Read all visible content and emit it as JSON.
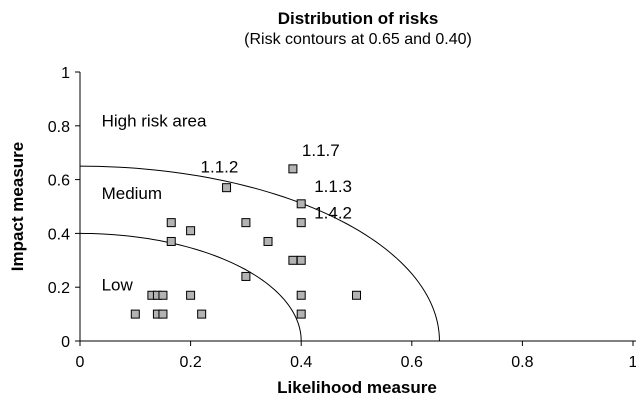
{
  "chart_data": {
    "type": "scatter",
    "title": "Distribution of risks",
    "subtitle": "(Risk contours at 0.65 and 0.40)",
    "xlabel": "Likelihood measure",
    "ylabel": "Impact measure",
    "xlim": [
      0,
      1
    ],
    "ylim": [
      0,
      1
    ],
    "x_ticks": [
      "0",
      "0.2",
      "0.4",
      "0.6",
      "0.8",
      "1"
    ],
    "y_ticks": [
      "0",
      "0.2",
      "0.4",
      "0.6",
      "0.8",
      "1"
    ],
    "grid": false,
    "points": [
      {
        "x": 0.1,
        "y": 0.1
      },
      {
        "x": 0.13,
        "y": 0.17
      },
      {
        "x": 0.14,
        "y": 0.17
      },
      {
        "x": 0.15,
        "y": 0.17
      },
      {
        "x": 0.14,
        "y": 0.1
      },
      {
        "x": 0.15,
        "y": 0.1
      },
      {
        "x": 0.165,
        "y": 0.44
      },
      {
        "x": 0.165,
        "y": 0.37
      },
      {
        "x": 0.2,
        "y": 0.41
      },
      {
        "x": 0.2,
        "y": 0.17
      },
      {
        "x": 0.22,
        "y": 0.1
      },
      {
        "x": 0.265,
        "y": 0.57
      },
      {
        "x": 0.3,
        "y": 0.44
      },
      {
        "x": 0.3,
        "y": 0.24
      },
      {
        "x": 0.34,
        "y": 0.37
      },
      {
        "x": 0.385,
        "y": 0.64
      },
      {
        "x": 0.385,
        "y": 0.3
      },
      {
        "x": 0.4,
        "y": 0.3
      },
      {
        "x": 0.4,
        "y": 0.51
      },
      {
        "x": 0.4,
        "y": 0.44
      },
      {
        "x": 0.4,
        "y": 0.17
      },
      {
        "x": 0.4,
        "y": 0.1
      },
      {
        "x": 0.5,
        "y": 0.17
      }
    ],
    "point_labels": [
      {
        "text": "1.1.2",
        "x": 0.265,
        "y": 0.57
      },
      {
        "text": "1.1.7",
        "x": 0.385,
        "y": 0.64
      },
      {
        "text": "1.1.3",
        "x": 0.4,
        "y": 0.51
      },
      {
        "text": "1.4.2",
        "x": 0.4,
        "y": 0.44
      }
    ],
    "region_labels": [
      {
        "text": "High risk area",
        "x": 0.03,
        "y": 0.82
      },
      {
        "text": "Medium",
        "x": 0.03,
        "y": 0.55
      },
      {
        "text": "Low",
        "x": 0.03,
        "y": 0.21
      }
    ],
    "contours": [
      0.65,
      0.4
    ],
    "marker_color": "#b3b3b3"
  }
}
